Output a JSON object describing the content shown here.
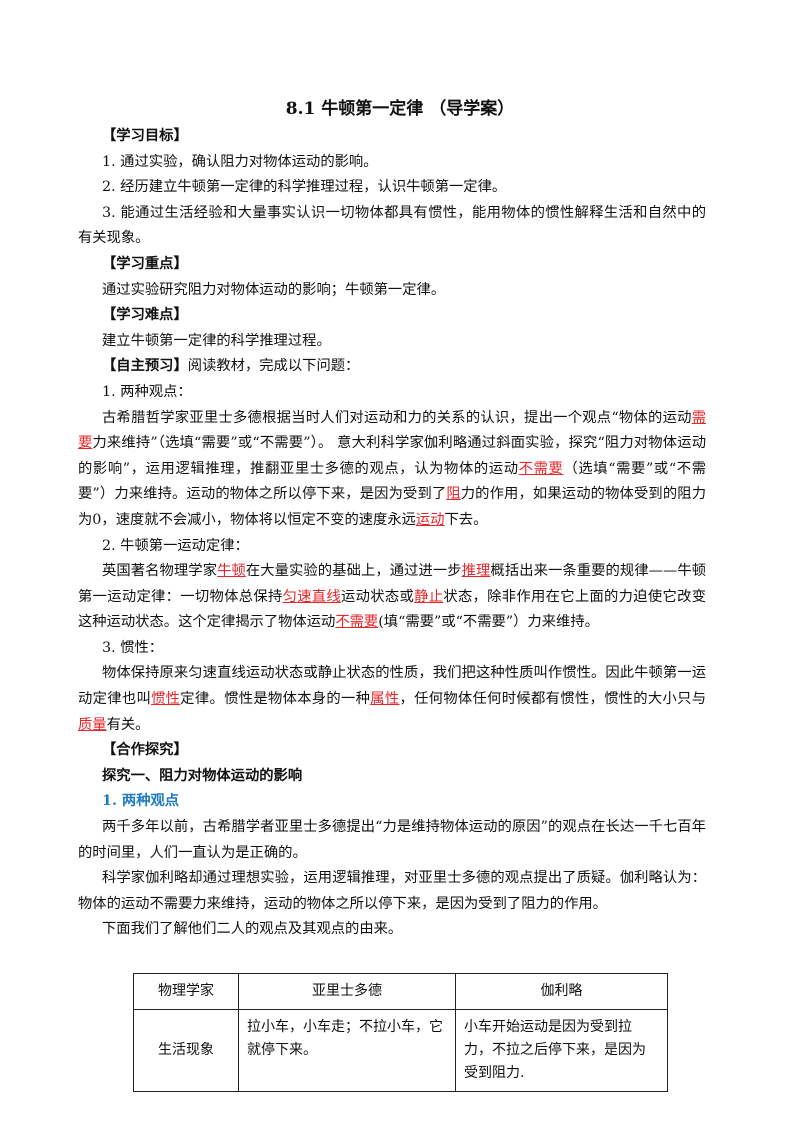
{
  "title": "8.1  牛顿第一定律  （导学案）",
  "blocks": [
    {
      "style": "heading",
      "runs": [
        {
          "text": "【学习目标】"
        }
      ]
    },
    {
      "style": "para",
      "runs": [
        {
          "text": "1. 通过实验，确认阻力对物体运动的影响。"
        }
      ]
    },
    {
      "style": "para",
      "runs": [
        {
          "text": "2. 经历建立牛顿第一定律的科学推理过程，认识牛顿第一定律。"
        }
      ]
    },
    {
      "style": "para",
      "runs": [
        {
          "text": "3. 能通过生活经验和大量事实认识一切物体都具有惯性，能用物体的惯性解释生活和自然中的有关现象。"
        }
      ]
    },
    {
      "style": "heading",
      "runs": [
        {
          "text": "【学习重点】"
        }
      ]
    },
    {
      "style": "para",
      "runs": [
        {
          "text": "通过实验研究阻力对物体运动的影响；牛顿第一定律。"
        }
      ]
    },
    {
      "style": "heading",
      "runs": [
        {
          "text": "【学习难点】"
        }
      ]
    },
    {
      "style": "para",
      "runs": [
        {
          "text": "建立牛顿第一定律的科学推理过程。"
        }
      ]
    },
    {
      "style": "para",
      "runs": [
        {
          "bold": "【自主预习】"
        },
        {
          "text": "阅读教材，完成以下问题："
        }
      ]
    },
    {
      "style": "para",
      "runs": [
        {
          "text": "1. 两种观点："
        }
      ]
    },
    {
      "style": "para",
      "runs": [
        {
          "text": "古希腊哲学家亚里士多德根据当时人们对运动和力的关系的认识，提出一个观点“物体的运动"
        },
        {
          "answer": "需要"
        },
        {
          "text": "力来维持”（选填“需要”或“不需要”）。 意大利科学家伽利略通过斜面实验，探究“阻力对物体运动的影响”，运用逻辑推理，推翻亚里士多德的观点，认为物体的运动"
        },
        {
          "answer": "不需要"
        },
        {
          "text": "（选填“需要”或“不需要”）力来维持。运动的物体之所以停下来，是因为受到了"
        },
        {
          "answer": "阻"
        },
        {
          "text": "力的作用，如果运动的物体受到的阻力为0，速度就不会减小，物体将以恒定不变的速度永远"
        },
        {
          "answer": "运动"
        },
        {
          "text": "下去。"
        }
      ]
    },
    {
      "style": "para",
      "runs": [
        {
          "text": "2. 牛顿第一运动定律："
        }
      ]
    },
    {
      "style": "para",
      "runs": [
        {
          "text": "英国著名物理学家"
        },
        {
          "answer": "牛顿"
        },
        {
          "text": "在大量实验的基础上，通过进一步"
        },
        {
          "answer": "推理"
        },
        {
          "text": "概括出来一条重要的规律——牛顿第一运动定律：一切物体总保持"
        },
        {
          "answer": "匀速直线"
        },
        {
          "text": "运动状态或"
        },
        {
          "answer": "静止"
        },
        {
          "text": "状态，除非作用在它上面的力迫使它改变这种运动状态。这个定律揭示了物体运动"
        },
        {
          "answer": "不需要"
        },
        {
          "text": "(填“需要”或“不需要”）力来维持。"
        }
      ]
    },
    {
      "style": "para",
      "runs": [
        {
          "text": "3. 惯性："
        }
      ]
    },
    {
      "style": "para",
      "runs": [
        {
          "text": "物体保持原来匀速直线运动状态或静止状态的性质，我们把这种性质叫作惯性。因此牛顿第一运动定律也叫"
        },
        {
          "answer": "惯性"
        },
        {
          "text": "定律。惯性是物体本身的一种"
        },
        {
          "answer": "属性"
        },
        {
          "text": "，任何物体任何时候都有惯性，惯性的大小只与"
        },
        {
          "answer": "质量"
        },
        {
          "text": "有关。"
        }
      ]
    },
    {
      "style": "heading",
      "runs": [
        {
          "text": "【合作探究】"
        }
      ]
    },
    {
      "style": "heading",
      "runs": [
        {
          "text": "探究一、阻力对物体运动的影响"
        }
      ]
    },
    {
      "style": "blue",
      "runs": [
        {
          "text": "1. 两种观点"
        }
      ]
    },
    {
      "style": "para",
      "runs": [
        {
          "text": "两千多年以前，古希腊学者亚里士多德提出“力是维持物体运动的原因”的观点在长达一千七百年的时间里，人们一直认为是正确的。"
        }
      ]
    },
    {
      "style": "para",
      "runs": [
        {
          "text": "科学家伽利略却通过理想实验，运用逻辑推理，对亚里士多德的观点提出了质疑。伽利略认为：物体的运动不需要力来维持，运动的物体之所以停下来，是因为受到了阻力的作用。"
        }
      ]
    },
    {
      "style": "para",
      "runs": [
        {
          "text": "下面我们了解他们二人的观点及其观点的由来。"
        }
      ]
    }
  ],
  "table": {
    "header": [
      "物理学家",
      "亚里士多德",
      "伽利略"
    ],
    "rows": [
      [
        "生活现象",
        "拉小车，小车走；不拉小车，它就停下来。",
        "小车开始运动是因为受到拉力，不拉之后停下来，是因为受到阻力."
      ]
    ]
  }
}
